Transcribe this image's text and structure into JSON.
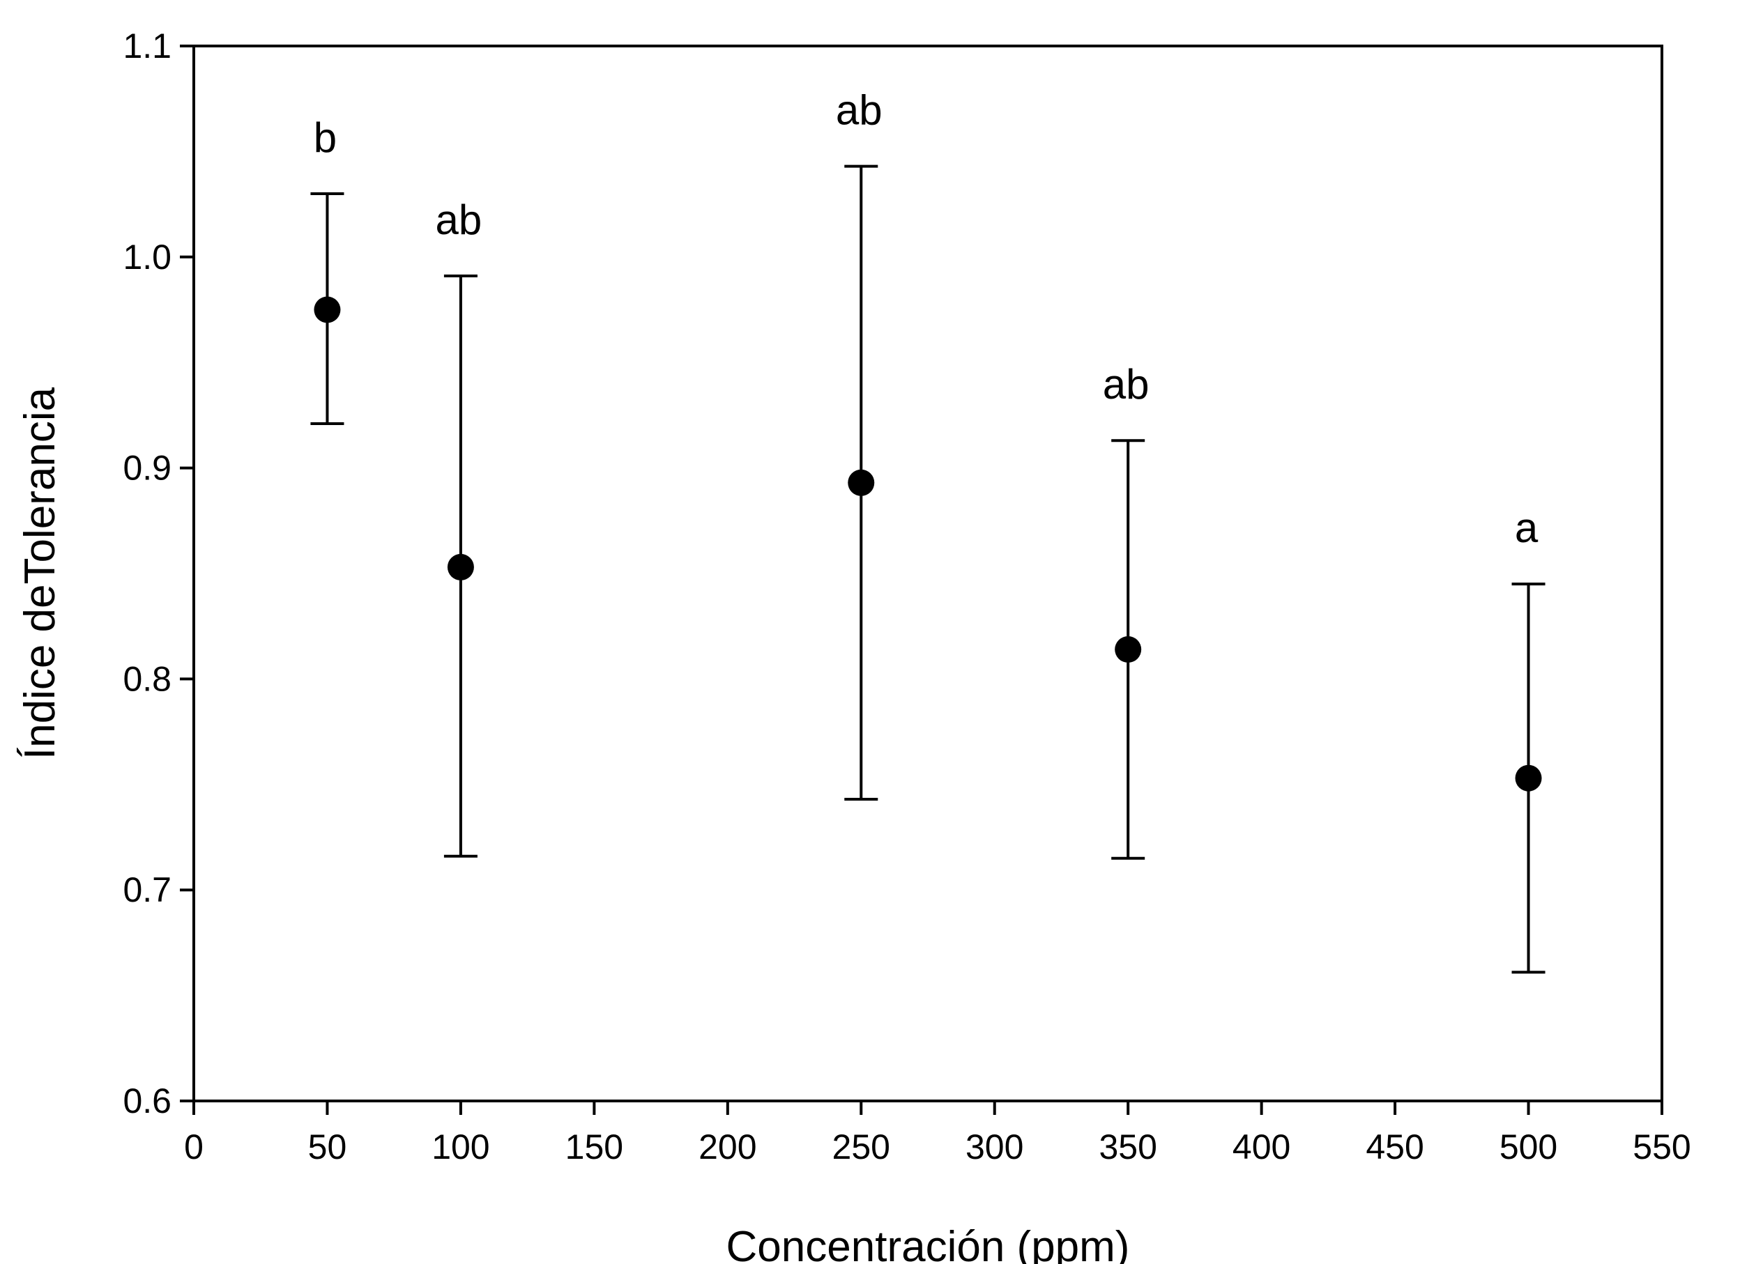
{
  "chart_data": {
    "type": "scatter",
    "title": "",
    "xlabel": "Concentración (ppm)",
    "ylabel": "Índice deTolerancia",
    "xlim": [
      0,
      550
    ],
    "ylim": [
      0.6,
      1.1
    ],
    "xticks": [
      0,
      50,
      100,
      150,
      200,
      250,
      300,
      350,
      400,
      450,
      500,
      550
    ],
    "yticks": [
      "0.6",
      "0.7",
      "0.8",
      "0.9",
      "1.0",
      "1.1"
    ],
    "grid": false,
    "marker_color": "#000000",
    "points": [
      {
        "x": 50,
        "y": 0.975,
        "err_low": 0.921,
        "err_high": 1.03,
        "label": "b"
      },
      {
        "x": 100,
        "y": 0.853,
        "err_low": 0.716,
        "err_high": 0.991,
        "label": "ab"
      },
      {
        "x": 250,
        "y": 0.893,
        "err_low": 0.743,
        "err_high": 1.043,
        "label": "ab"
      },
      {
        "x": 350,
        "y": 0.814,
        "err_low": 0.715,
        "err_high": 0.913,
        "label": "ab"
      },
      {
        "x": 500,
        "y": 0.753,
        "err_low": 0.661,
        "err_high": 0.845,
        "label": "a"
      }
    ]
  }
}
